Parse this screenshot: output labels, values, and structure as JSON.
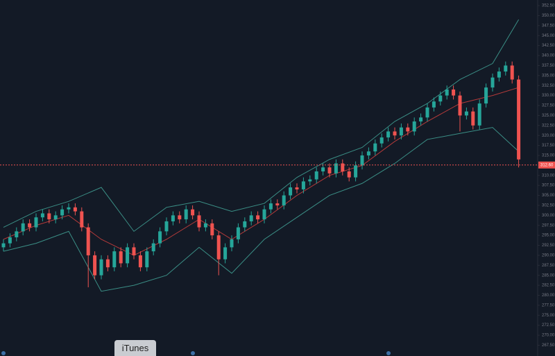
{
  "chart_data": {
    "type": "candlestick",
    "open": [
      292,
      293,
      294.5,
      296,
      298,
      297,
      299.5,
      300.5,
      299,
      300,
      301.5,
      302,
      301,
      297,
      290,
      285,
      289,
      287,
      291,
      288,
      292,
      290,
      287,
      291,
      293,
      296,
      298.5,
      300,
      299,
      301.5,
      300,
      297,
      298,
      295,
      289,
      292,
      294,
      297,
      298.5,
      300,
      299,
      301.5,
      303,
      302.5,
      305,
      307,
      306.5,
      308.5,
      309,
      311,
      312,
      310.5,
      313,
      311,
      309.5,
      312.5,
      315,
      316,
      318,
      319.5,
      321,
      320,
      322,
      321,
      323.5,
      324.5,
      327,
      328.5,
      330,
      331.5,
      330,
      325,
      326,
      322.5,
      328,
      332,
      334.5,
      336,
      337.5,
      334
    ],
    "high": [
      294,
      295.5,
      297,
      299,
      299,
      300.5,
      301.5,
      301.5,
      301,
      302.5,
      303,
      303,
      302,
      298,
      291,
      290,
      290,
      292,
      292,
      293,
      293,
      291,
      292,
      294,
      297,
      299.5,
      301,
      301,
      302.5,
      302.5,
      301,
      299,
      299,
      296,
      293,
      295,
      298,
      299.5,
      301,
      301,
      302.5,
      304,
      304,
      306,
      308,
      308,
      309.5,
      310,
      312,
      313,
      313,
      314,
      314,
      312,
      313.5,
      316,
      317,
      319,
      320.5,
      322,
      322,
      323,
      323,
      324.5,
      325.5,
      328,
      329.5,
      331,
      332.5,
      332.5,
      331,
      327,
      327,
      329,
      333,
      335.5,
      337,
      338.5,
      338.5,
      335
    ],
    "low": [
      291,
      292,
      293.5,
      295,
      296,
      296,
      298.5,
      298,
      298,
      299,
      300.5,
      300,
      296,
      282,
      284,
      284,
      286,
      286,
      287,
      287,
      289,
      286,
      286,
      290,
      292,
      295,
      297.5,
      298,
      298,
      299,
      296,
      296,
      294,
      285,
      288,
      291,
      293,
      296,
      297.5,
      298,
      298,
      300.5,
      301.5,
      301.5,
      304,
      305.5,
      305.5,
      307.5,
      308,
      310,
      309.5,
      309.5,
      310,
      308.5,
      308.5,
      311.5,
      314,
      315,
      317,
      318.5,
      319,
      319,
      320,
      320,
      322.5,
      323.5,
      326,
      327.5,
      329,
      329,
      321,
      324,
      321.5,
      321.5,
      327,
      331,
      333.5,
      335,
      333,
      312
    ],
    "close": [
      293,
      294.5,
      296,
      298,
      297,
      299.5,
      300.5,
      299,
      300,
      301.5,
      302,
      301,
      297,
      290,
      285,
      289,
      287,
      291,
      288,
      292,
      290,
      287,
      291,
      293,
      296,
      298.5,
      300,
      299,
      301.5,
      300,
      297,
      298,
      295,
      289,
      292,
      294,
      297,
      298.5,
      300,
      299,
      301.5,
      303,
      302.5,
      305,
      307,
      306.5,
      308.5,
      309,
      311,
      312,
      310.5,
      313,
      311,
      309.5,
      312.5,
      315,
      316,
      318,
      319.5,
      321,
      320,
      322,
      321,
      323.5,
      324.5,
      327,
      328.5,
      330,
      331.5,
      330,
      325,
      326,
      322.5,
      328,
      332,
      334.5,
      336,
      337.5,
      334,
      314
    ],
    "up_color": "#26a69a",
    "down_color": "#ef5350",
    "bands": {
      "x": [
        0,
        5,
        10,
        15,
        20,
        25,
        30,
        35,
        40,
        45,
        50,
        55,
        60,
        65,
        70,
        75,
        79
      ],
      "upper": [
        297,
        301,
        303.5,
        307,
        296,
        302,
        303.5,
        301,
        303,
        309.5,
        314,
        317,
        323.5,
        328,
        334,
        338,
        349
      ],
      "middle": [
        294,
        297.5,
        300,
        294,
        290,
        294,
        299,
        294,
        299,
        305,
        310,
        312.5,
        318.5,
        323.5,
        328,
        330,
        332
      ],
      "lower": [
        291,
        293,
        296,
        281,
        282.5,
        285,
        292,
        285.5,
        294,
        299.5,
        305,
        308,
        313,
        319,
        320.5,
        322,
        316
      ],
      "band_color": "#3b8f86",
      "middle_color": "#b33a3a"
    },
    "ylim": [
      264.8,
      353.9
    ],
    "yticks": [
      {
        "value": 352.5,
        "label": "352.50"
      },
      {
        "value": 350,
        "label": "350.00"
      },
      {
        "value": 347.5,
        "label": "347.50"
      },
      {
        "value": 345,
        "label": "345.00"
      },
      {
        "value": 342.5,
        "label": "342.50"
      },
      {
        "value": 340,
        "label": "340.00"
      },
      {
        "value": 337.5,
        "label": "337.50"
      },
      {
        "value": 335,
        "label": "335.00"
      },
      {
        "value": 332.5,
        "label": "332.50"
      },
      {
        "value": 330,
        "label": "330.00"
      },
      {
        "value": 327.5,
        "label": "327.50"
      },
      {
        "value": 325,
        "label": "325.00"
      },
      {
        "value": 322.5,
        "label": "322.50"
      },
      {
        "value": 320,
        "label": "320.00"
      },
      {
        "value": 317.5,
        "label": "317.50"
      },
      {
        "value": 315,
        "label": "315.00"
      },
      {
        "value": 312.5,
        "label": "312.50"
      },
      {
        "value": 310,
        "label": "310.00"
      },
      {
        "value": 307.5,
        "label": "307.50"
      },
      {
        "value": 305,
        "label": "305.00"
      },
      {
        "value": 302.5,
        "label": "302.50"
      },
      {
        "value": 300,
        "label": "300.00"
      },
      {
        "value": 297.5,
        "label": "297.50"
      },
      {
        "value": 295,
        "label": "295.00"
      },
      {
        "value": 292.5,
        "label": "292.50"
      },
      {
        "value": 290,
        "label": "290.00"
      },
      {
        "value": 287.5,
        "label": "287.50"
      },
      {
        "value": 285,
        "label": "285.00"
      },
      {
        "value": 282.5,
        "label": "282.50"
      },
      {
        "value": 280,
        "label": "280.00"
      },
      {
        "value": 277.5,
        "label": "277.50"
      },
      {
        "value": 275,
        "label": "275.00"
      },
      {
        "value": 272.5,
        "label": "272.50"
      },
      {
        "value": 270,
        "label": "270.00"
      },
      {
        "value": 267.5,
        "label": "267.50"
      }
    ],
    "price_line": {
      "value": 312.6,
      "label": "312.60",
      "color": "#ef5350"
    }
  },
  "tooltip": "iTunes"
}
